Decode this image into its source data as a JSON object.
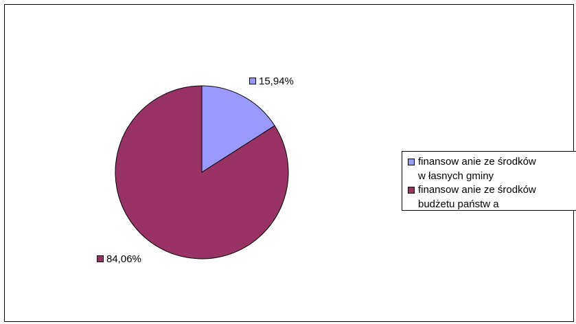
{
  "chart_data": {
    "type": "pie",
    "title": "",
    "slices": [
      {
        "label": "finansow anie ze środków w łasnych gminy",
        "value": 15.94,
        "value_label": "15,94%",
        "color": "#9999ff"
      },
      {
        "label": "finansow anie ze środków budżetu państw a",
        "value": 84.06,
        "value_label": "84,06%",
        "color": "#993366"
      }
    ],
    "legend_position": "right",
    "legend": [
      {
        "line1": "finansow anie ze środków",
        "line2": "w łasnych gminy"
      },
      {
        "line1": "finansow anie ze środków",
        "line2": "budżetu państw a"
      }
    ]
  }
}
